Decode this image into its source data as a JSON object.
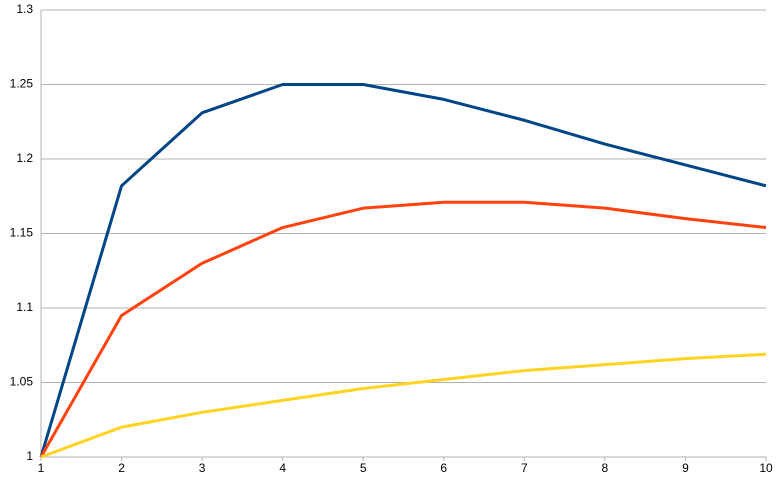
{
  "chart_data": {
    "type": "line",
    "x": [
      1,
      2,
      3,
      4,
      5,
      6,
      7,
      8,
      9,
      10
    ],
    "series": [
      {
        "color": "#004586",
        "values": [
          1,
          1.182,
          1.231,
          1.25,
          1.25,
          1.24,
          1.226,
          1.21,
          1.196,
          1.182
        ]
      },
      {
        "color": "#ff420e",
        "values": [
          1,
          1.095,
          1.13,
          1.154,
          1.167,
          1.171,
          1.171,
          1.167,
          1.16,
          1.154
        ]
      },
      {
        "color": "#ffd320",
        "values": [
          1,
          1.02,
          1.03,
          1.038,
          1.046,
          1.052,
          1.058,
          1.062,
          1.066,
          1.069
        ]
      }
    ],
    "xlim": [
      1,
      10
    ],
    "xticks": [
      1,
      2,
      3,
      4,
      5,
      6,
      7,
      8,
      9,
      10
    ],
    "ylim": [
      1,
      1.3
    ],
    "yticks": [
      1,
      1.05,
      1.1,
      1.15,
      1.2,
      1.25,
      1.3
    ],
    "grid": true
  }
}
